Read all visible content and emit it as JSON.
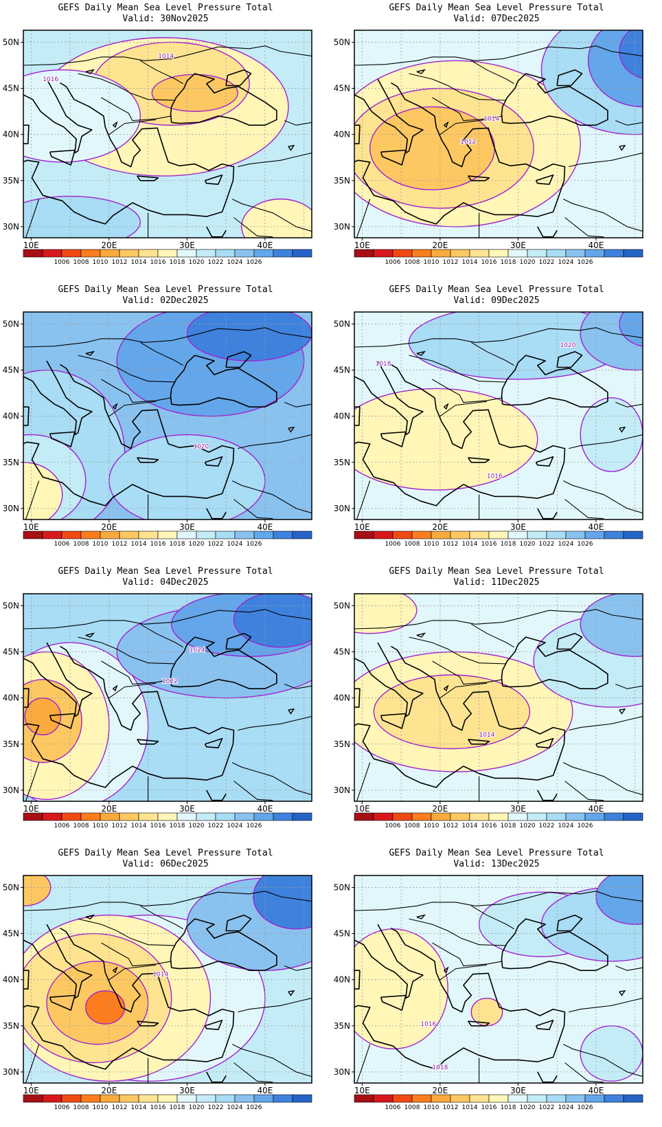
{
  "map_title": "GEFS Daily Mean Sea Level Pressure Total",
  "valid_prefix": "Valid:",
  "lat_labels": [
    "50N",
    "45N",
    "40N",
    "35N",
    "30N"
  ],
  "lon_labels": [
    "10E",
    "20E",
    "30E",
    "40E"
  ],
  "colorbar": {
    "colors": [
      "#a50f15",
      "#d7191c",
      "#f04a14",
      "#fc7d1d",
      "#fbaa3d",
      "#fdc862",
      "#fee491",
      "#fff6b8",
      "#e2f7fb",
      "#c4ecf7",
      "#a9dcf5",
      "#8ac2ef",
      "#64a6ea",
      "#3f82de",
      "#2563c7"
    ],
    "labels": [
      "1006",
      "1008",
      "1010",
      "1012",
      "1014",
      "1016",
      "1018",
      "1020",
      "1022",
      "1024",
      "1026"
    ]
  },
  "panels": [
    {
      "valid": "30Nov2025",
      "bg": "#c4ecf7",
      "labels": [
        {
          "text": "1016",
          "lon": 12.5,
          "lat": 45.8
        },
        {
          "text": "1014",
          "lon": 27.3,
          "lat": 48.3
        }
      ],
      "blobs": [
        {
          "fill": "#fff6b8",
          "lon": 27,
          "lat": 43,
          "rlon": 16,
          "rlat": 7.5
        },
        {
          "fill": "#fee491",
          "lon": 28,
          "lat": 45.5,
          "rlon": 10,
          "rlat": 4.5
        },
        {
          "fill": "#fdc862",
          "lon": 31,
          "lat": 44.5,
          "rlon": 5.5,
          "rlat": 2
        },
        {
          "fill": "#e2f7fb",
          "lon": 14,
          "lat": 42,
          "rlon": 10,
          "rlat": 5
        },
        {
          "fill": "#a9dcf5",
          "lon": 15,
          "lat": 30.5,
          "rlon": 9,
          "rlat": 2.8
        },
        {
          "fill": "#fff6b8",
          "lon": 42,
          "lat": 30,
          "rlon": 5,
          "rlat": 3
        }
      ]
    },
    {
      "valid": "07Dec2025",
      "bg": "#e2f7fb",
      "labels": [
        {
          "text": "1014",
          "lon": 26.6,
          "lat": 41.5
        },
        {
          "text": "1012",
          "lon": 23.6,
          "lat": 39
        }
      ],
      "blobs": [
        {
          "fill": "#fff6b8",
          "lon": 22,
          "lat": 39,
          "rlon": 16,
          "rlat": 9
        },
        {
          "fill": "#fee491",
          "lon": 20,
          "lat": 38.5,
          "rlon": 12,
          "rlat": 6.5
        },
        {
          "fill": "#fdc862",
          "lon": 19,
          "lat": 38.5,
          "rlon": 8,
          "rlat": 4.5
        },
        {
          "fill": "#a9dcf5",
          "lon": 45,
          "lat": 47,
          "rlon": 12,
          "rlat": 7
        },
        {
          "fill": "#64a6ea",
          "lon": 46,
          "lat": 48,
          "rlon": 7,
          "rlat": 5
        },
        {
          "fill": "#3f82de",
          "lon": 47,
          "lat": 49,
          "rlon": 4,
          "rlat": 3
        }
      ]
    },
    {
      "valid": "02Dec2025",
      "bg": "#8ac2ef",
      "labels": [
        {
          "text": "1020",
          "lon": 31.8,
          "lat": 36.5
        }
      ],
      "blobs": [
        {
          "fill": "#a9dcf5",
          "lon": 12,
          "lat": 36,
          "rlon": 10,
          "rlat": 9
        },
        {
          "fill": "#c4ecf7",
          "lon": 10,
          "lat": 33,
          "rlon": 7,
          "rlat": 5
        },
        {
          "fill": "#fff6b8",
          "lon": 9,
          "lat": 31.5,
          "rlon": 5,
          "rlat": 3.5
        },
        {
          "fill": "#64a6ea",
          "lon": 33,
          "lat": 46,
          "rlon": 12,
          "rlat": 6
        },
        {
          "fill": "#3f82de",
          "lon": 38,
          "lat": 49,
          "rlon": 8,
          "rlat": 3
        },
        {
          "fill": "#a9dcf5",
          "lon": 30,
          "lat": 33,
          "rlon": 10,
          "rlat": 5
        }
      ]
    },
    {
      "valid": "09Dec2025",
      "bg": "#e2f7fb",
      "labels": [
        {
          "text": "1020",
          "lon": 36.4,
          "lat": 47.5
        },
        {
          "text": "1018",
          "lon": 12.7,
          "lat": 45.5
        },
        {
          "text": "1016",
          "lon": 27,
          "lat": 33.3
        }
      ],
      "blobs": [
        {
          "fill": "#fff6b8",
          "lon": 19.5,
          "lat": 37.5,
          "rlon": 13,
          "rlat": 5.5
        },
        {
          "fill": "#a9dcf5",
          "lon": 30,
          "lat": 48,
          "rlon": 14,
          "rlat": 4
        },
        {
          "fill": "#8ac2ef",
          "lon": 45,
          "lat": 49,
          "rlon": 7,
          "rlat": 4
        },
        {
          "fill": "#64a6ea",
          "lon": 47,
          "lat": 50,
          "rlon": 4,
          "rlat": 2.5
        },
        {
          "fill": "#c4ecf7",
          "lon": 42,
          "lat": 38,
          "rlon": 4,
          "rlat": 4
        }
      ]
    },
    {
      "valid": "04Dec2025",
      "bg": "#a9dcf5",
      "labels": [
        {
          "text": "1024",
          "lon": 31.3,
          "lat": 45
        },
        {
          "text": "1022",
          "lon": 27.8,
          "lat": 41.6
        }
      ],
      "blobs": [
        {
          "fill": "#e2f7fb",
          "lon": 15,
          "lat": 37,
          "rlon": 10,
          "rlat": 9
        },
        {
          "fill": "#fff6b8",
          "lon": 12,
          "lat": 37,
          "rlon": 8,
          "rlat": 8
        },
        {
          "fill": "#fdc862",
          "lon": 11.5,
          "lat": 37.5,
          "rlon": 5,
          "rlat": 4.5
        },
        {
          "fill": "#fbaa3d",
          "lon": 11.5,
          "lat": 38,
          "rlon": 2.3,
          "rlat": 2
        },
        {
          "fill": "#8ac2ef",
          "lon": 35,
          "lat": 45,
          "rlon": 14,
          "rlat": 5
        },
        {
          "fill": "#64a6ea",
          "lon": 38,
          "lat": 48,
          "rlon": 10,
          "rlat": 3.5
        },
        {
          "fill": "#3f82de",
          "lon": 42,
          "lat": 48.5,
          "rlon": 6,
          "rlat": 3
        }
      ]
    },
    {
      "valid": "11Dec2025",
      "bg": "#e2f7fb",
      "labels": [
        {
          "text": "1014",
          "lon": 26,
          "lat": 35.8
        }
      ],
      "blobs": [
        {
          "fill": "#fff6b8",
          "lon": 22,
          "lat": 38.5,
          "rlon": 15,
          "rlat": 6.5
        },
        {
          "fill": "#fee491",
          "lon": 21.5,
          "lat": 38.5,
          "rlon": 10,
          "rlat": 4
        },
        {
          "fill": "#fff6b8",
          "lon": 11,
          "lat": 49.5,
          "rlon": 6,
          "rlat": 2.5
        },
        {
          "fill": "#c4ecf7",
          "lon": 42,
          "lat": 44,
          "rlon": 10,
          "rlat": 5
        },
        {
          "fill": "#8ac2ef",
          "lon": 45,
          "lat": 48,
          "rlon": 7,
          "rlat": 3.5
        }
      ]
    },
    {
      "valid": "06Dec2025",
      "bg": "#c4ecf7",
      "labels": [
        {
          "text": "1014",
          "lon": 26.6,
          "lat": 40.4
        }
      ],
      "blobs": [
        {
          "fill": "#e2f7fb",
          "lon": 25,
          "lat": 38,
          "rlon": 15,
          "rlat": 9
        },
        {
          "fill": "#fff6b8",
          "lon": 20,
          "lat": 38,
          "rlon": 13,
          "rlat": 9
        },
        {
          "fill": "#fee491",
          "lon": 18,
          "lat": 38,
          "rlon": 10,
          "rlat": 7
        },
        {
          "fill": "#fdc862",
          "lon": 18.5,
          "lat": 37.5,
          "rlon": 6.5,
          "rlat": 4.5
        },
        {
          "fill": "#fc7d1d",
          "lon": 19.5,
          "lat": 37,
          "rlon": 2.5,
          "rlat": 1.8
        },
        {
          "fill": "#fdc862",
          "lon": 9,
          "lat": 50,
          "rlon": 3.5,
          "rlat": 2
        },
        {
          "fill": "#8ac2ef",
          "lon": 40,
          "lat": 46,
          "rlon": 10,
          "rlat": 5
        },
        {
          "fill": "#3f82de",
          "lon": 44,
          "lat": 49,
          "rlon": 5.5,
          "rlat": 3.5
        }
      ]
    },
    {
      "valid": "13Dec2025",
      "bg": "#e2f7fb",
      "labels": [
        {
          "text": "1016",
          "lon": 18.5,
          "lat": 35
        },
        {
          "text": "1018",
          "lon": 20,
          "lat": 30.3
        }
      ],
      "blobs": [
        {
          "fill": "#fff6b8",
          "lon": 14,
          "lat": 39,
          "rlon": 7,
          "rlat": 6.5
        },
        {
          "fill": "#fee491",
          "lon": 26,
          "lat": 36.5,
          "rlon": 2,
          "rlat": 1.5
        },
        {
          "fill": "#c4ecf7",
          "lon": 33,
          "lat": 46,
          "rlon": 8,
          "rlat": 3.5
        },
        {
          "fill": "#a9dcf5",
          "lon": 42,
          "lat": 46,
          "rlon": 9,
          "rlat": 4
        },
        {
          "fill": "#64a6ea",
          "lon": 45,
          "lat": 49,
          "rlon": 5,
          "rlat": 3
        },
        {
          "fill": "#c4ecf7",
          "lon": 42,
          "lat": 32,
          "rlon": 4,
          "rlat": 3
        }
      ]
    }
  ]
}
